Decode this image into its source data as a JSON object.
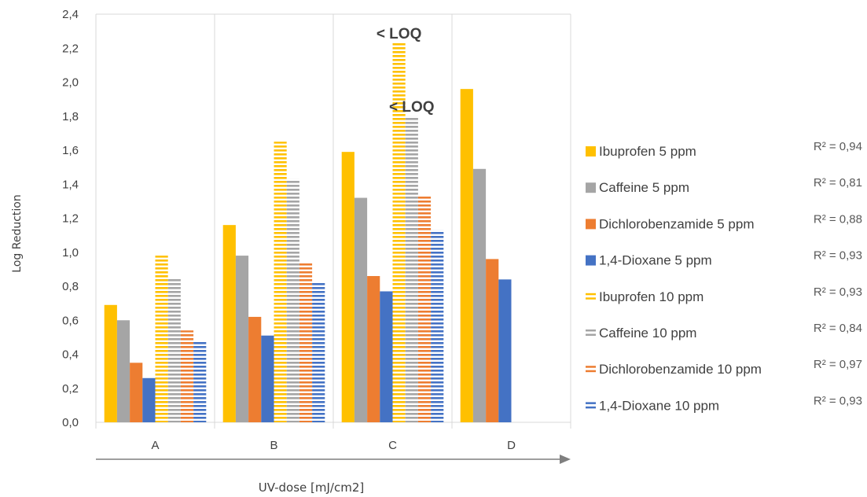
{
  "chart_data": {
    "type": "bar",
    "ylabel": "Log Reduction",
    "xlabel": "UV-dose [mJ/cm2]",
    "ylim": [
      0,
      2.4
    ],
    "yticks": [
      "0,0",
      "0,2",
      "0,4",
      "0,6",
      "0,8",
      "1,0",
      "1,2",
      "1,4",
      "1,6",
      "1,8",
      "2,0",
      "2,2",
      "2,4"
    ],
    "grid": "vertical category dividers",
    "legend_position": "right",
    "categories": [
      "A",
      "B",
      "C",
      "D"
    ],
    "series": [
      {
        "name": "Ibuprofen 5 ppm",
        "r2": "R² = 0,94",
        "color": "#FFC000",
        "pattern": "solid",
        "values": [
          0.69,
          1.16,
          1.59,
          1.96
        ]
      },
      {
        "name": "Caffeine 5 ppm",
        "r2": "R² = 0,81",
        "color": "#A5A5A5",
        "pattern": "solid",
        "values": [
          0.6,
          0.98,
          1.32,
          1.49
        ]
      },
      {
        "name": "Dichlorobenzamide 5 ppm",
        "r2": "R² = 0,88",
        "color": "#ED7D31",
        "pattern": "solid",
        "values": [
          0.35,
          0.62,
          0.86,
          0.96
        ]
      },
      {
        "name": "1,4-Dioxane 5 ppm",
        "r2": "R² = 0,93",
        "color": "#4472C4",
        "pattern": "solid",
        "values": [
          0.26,
          0.51,
          0.77,
          0.84
        ]
      },
      {
        "name": "Ibuprofen 10 ppm",
        "r2": "R² = 0,93",
        "color": "#FFC000",
        "pattern": "striped",
        "values": [
          0.98,
          1.65,
          2.23,
          null
        ]
      },
      {
        "name": "Caffeine 10 ppm",
        "r2": "R² = 0,84",
        "color": "#A5A5A5",
        "pattern": "striped",
        "values": [
          0.85,
          1.43,
          1.8,
          null
        ]
      },
      {
        "name": "Dichlorobenzamide 10 ppm",
        "r2": "R² = 0,97",
        "color": "#ED7D31",
        "pattern": "striped",
        "values": [
          0.54,
          0.94,
          1.33,
          null
        ]
      },
      {
        "name": "1,4-Dioxane 10 ppm",
        "r2": "R² = 0,93",
        "color": "#4472C4",
        "pattern": "striped",
        "values": [
          0.48,
          0.82,
          1.13,
          null
        ]
      }
    ],
    "annotations": [
      {
        "text": "< LOQ",
        "category": "C",
        "series": "Ibuprofen 10 ppm"
      },
      {
        "text": "< LOQ",
        "category": "C",
        "series": "Caffeine 10 ppm"
      }
    ]
  }
}
